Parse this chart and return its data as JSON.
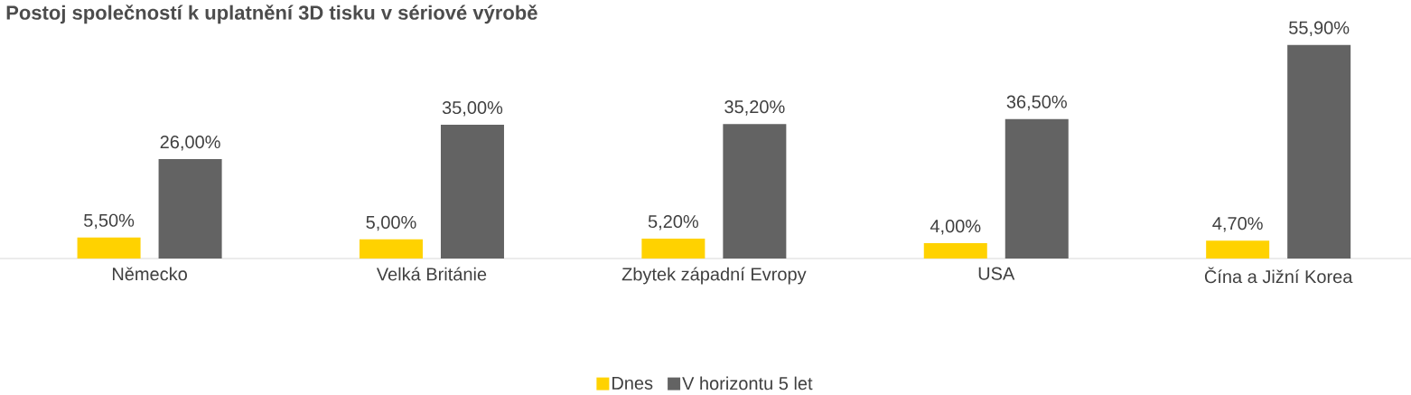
{
  "chart_data": {
    "type": "bar",
    "title": "Postoj společností k uplatnění 3D tisku v sériové výrobě",
    "categories": [
      "Německo",
      "Velká Británie",
      "Zbytek západní Evropy",
      "USA",
      "Čína a Jižní Korea"
    ],
    "series": [
      {
        "name": "Dnes",
        "color": "#ffd200",
        "values": [
          5.5,
          5.0,
          5.2,
          4.0,
          4.7
        ],
        "value_labels": [
          "5,50%",
          "5,00%",
          "5,20%",
          "4,00%",
          "4,70%"
        ]
      },
      {
        "name": "V horizontu 5 let",
        "color": "#636363",
        "values": [
          26.0,
          35.0,
          35.2,
          36.5,
          55.9
        ],
        "value_labels": [
          "26,00%",
          "35,00%",
          "35,20%",
          "36,50%",
          "55,90%"
        ]
      }
    ],
    "legend": "bottom"
  }
}
